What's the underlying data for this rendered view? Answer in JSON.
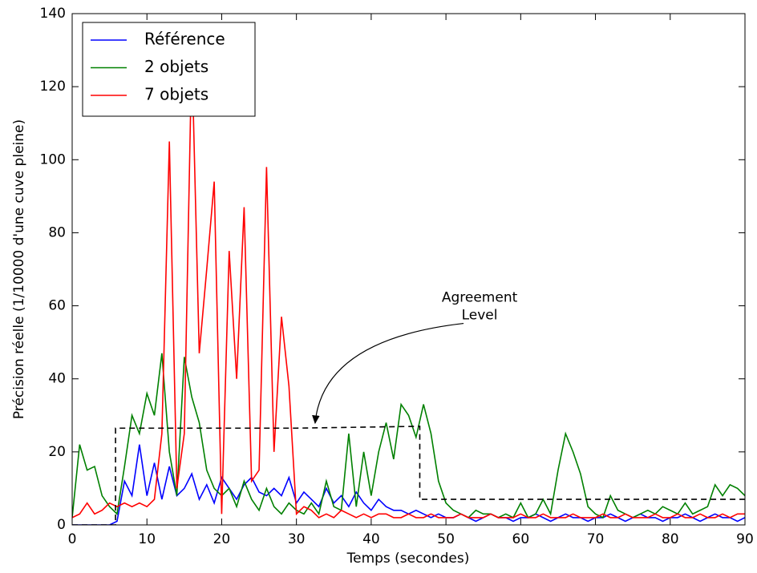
{
  "chart_data": {
    "type": "line",
    "xlabel": "Temps (secondes)",
    "ylabel": "Précision réelle (1/10000 d'une cuve pleine)",
    "xlim": [
      0,
      90
    ],
    "xticks": [
      0,
      10,
      20,
      30,
      40,
      50,
      60,
      70,
      80,
      90
    ],
    "ylim": [
      0,
      140
    ],
    "yticks": [
      0,
      20,
      40,
      60,
      80,
      100,
      120,
      140
    ],
    "legend": "upper left",
    "x": [
      0,
      1,
      2,
      3,
      4,
      5,
      6,
      7,
      8,
      9,
      10,
      11,
      12,
      13,
      14,
      15,
      16,
      17,
      18,
      19,
      20,
      21,
      22,
      23,
      24,
      25,
      26,
      27,
      28,
      29,
      30,
      31,
      32,
      33,
      34,
      35,
      36,
      37,
      38,
      39,
      40,
      41,
      42,
      43,
      44,
      45,
      46,
      47,
      48,
      49,
      50,
      51,
      52,
      53,
      54,
      55,
      56,
      57,
      58,
      59,
      60,
      61,
      62,
      63,
      64,
      65,
      66,
      67,
      68,
      69,
      70,
      71,
      72,
      73,
      74,
      75,
      76,
      77,
      78,
      79,
      80,
      81,
      82,
      83,
      84,
      85,
      86,
      87,
      88,
      89,
      90
    ],
    "series": [
      {
        "name": "Référence",
        "color": "#0000ff",
        "values": [
          0,
          0,
          0,
          0,
          0,
          0,
          1,
          12,
          8,
          22,
          8,
          17,
          7,
          16,
          8,
          10,
          14,
          7,
          11,
          6,
          13,
          10,
          7,
          11,
          13,
          9,
          8,
          10,
          8,
          13,
          6,
          9,
          7,
          5,
          10,
          6,
          8,
          5,
          9,
          6,
          4,
          7,
          5,
          4,
          4,
          3,
          4,
          3,
          2,
          3,
          2,
          2,
          3,
          2,
          1,
          2,
          3,
          2,
          2,
          1,
          2,
          2,
          3,
          2,
          1,
          2,
          3,
          2,
          2,
          1,
          2,
          2,
          3,
          2,
          1,
          2,
          3,
          2,
          2,
          1,
          2,
          2,
          3,
          2,
          1,
          2,
          3,
          2,
          2,
          1,
          2
        ]
      },
      {
        "name": "2 objets",
        "color": "#008000",
        "values": [
          2,
          22,
          15,
          16,
          8,
          5,
          3,
          16,
          30,
          25,
          36,
          30,
          47,
          20,
          8,
          46,
          35,
          28,
          15,
          10,
          8,
          10,
          5,
          12,
          7,
          4,
          10,
          5,
          3,
          6,
          4,
          3,
          6,
          3,
          12,
          5,
          4,
          25,
          5,
          20,
          8,
          20,
          28,
          18,
          33,
          30,
          24,
          33,
          25,
          12,
          6,
          4,
          3,
          2,
          4,
          3,
          3,
          2,
          3,
          2,
          6,
          2,
          3,
          7,
          3,
          15,
          25,
          20,
          14,
          5,
          3,
          2,
          8,
          4,
          3,
          2,
          3,
          4,
          3,
          5,
          4,
          3,
          6,
          3,
          4,
          5,
          11,
          8,
          11,
          10,
          8
        ]
      },
      {
        "name": "7 objets",
        "color": "#ff0000",
        "values": [
          2,
          3,
          6,
          3,
          4,
          6,
          5,
          6,
          5,
          6,
          5,
          7,
          25,
          105,
          10,
          25,
          130,
          47,
          70,
          94,
          3,
          75,
          40,
          87,
          12,
          15,
          98,
          20,
          57,
          38,
          3,
          5,
          4,
          2,
          3,
          2,
          4,
          3,
          2,
          3,
          2,
          3,
          3,
          2,
          2,
          3,
          2,
          2,
          3,
          2,
          2,
          2,
          3,
          2,
          2,
          2,
          3,
          2,
          2,
          2,
          3,
          2,
          2,
          3,
          2,
          2,
          2,
          3,
          2,
          2,
          2,
          3,
          2,
          2,
          3,
          2,
          2,
          2,
          3,
          2,
          2,
          3,
          2,
          2,
          3,
          2,
          2,
          3,
          2,
          3,
          3
        ]
      }
    ],
    "agreement_level": {
      "color": "#000000",
      "linestyle": "dashed",
      "x": [
        0,
        5.8,
        5.8,
        30,
        46.5,
        46.5,
        90
      ],
      "values": [
        0,
        0,
        26.5,
        26.5,
        27,
        7,
        7
      ]
    },
    "annotation": {
      "text_lines": [
        "Agreement",
        "Level"
      ],
      "xy": [
        32.5,
        27
      ],
      "xytext": [
        54.5,
        60
      ]
    }
  }
}
